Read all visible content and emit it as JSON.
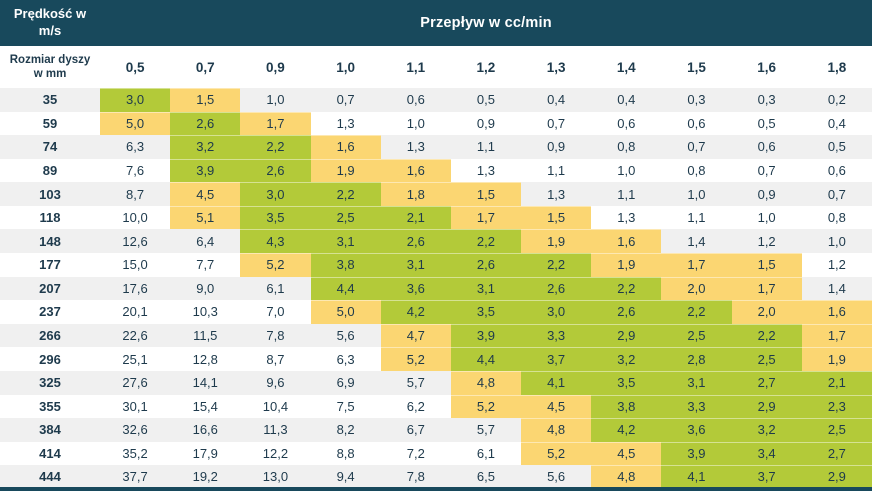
{
  "colors": {
    "header_bg": "#18495c",
    "header_text": "#ffffff",
    "body_text": "#1e3a4c",
    "green": "#b3ca39",
    "yellow": "#fbd672",
    "stripe": "#f0f0f0"
  },
  "chart_data": {
    "type": "table",
    "corner_label": "Prędkość w m/s",
    "title": "Przepływ w cc/min",
    "row_header_label": "Rozmiar dyszy w mm",
    "columns": [
      "0,5",
      "0,7",
      "0,9",
      "1,0",
      "1,1",
      "1,2",
      "1,3",
      "1,4",
      "1,5",
      "1,6",
      "1,8"
    ],
    "rows": [
      {
        "nozzle": "35",
        "values": [
          "3,0",
          "1,5",
          "1,0",
          "0,7",
          "0,6",
          "0,5",
          "0,4",
          "0,4",
          "0,3",
          "0,3",
          "0,2"
        ]
      },
      {
        "nozzle": "59",
        "values": [
          "5,0",
          "2,6",
          "1,7",
          "1,3",
          "1,0",
          "0,9",
          "0,7",
          "0,6",
          "0,6",
          "0,5",
          "0,4"
        ]
      },
      {
        "nozzle": "74",
        "values": [
          "6,3",
          "3,2",
          "2,2",
          "1,6",
          "1,3",
          "1,1",
          "0,9",
          "0,8",
          "0,7",
          "0,6",
          "0,5"
        ]
      },
      {
        "nozzle": "89",
        "values": [
          "7,6",
          "3,9",
          "2,6",
          "1,9",
          "1,6",
          "1,3",
          "1,1",
          "1,0",
          "0,8",
          "0,7",
          "0,6"
        ]
      },
      {
        "nozzle": "103",
        "values": [
          "8,7",
          "4,5",
          "3,0",
          "2,2",
          "1,8",
          "1,5",
          "1,3",
          "1,1",
          "1,0",
          "0,9",
          "0,7"
        ]
      },
      {
        "nozzle": "118",
        "values": [
          "10,0",
          "5,1",
          "3,5",
          "2,5",
          "2,1",
          "1,7",
          "1,5",
          "1,3",
          "1,1",
          "1,0",
          "0,8"
        ]
      },
      {
        "nozzle": "148",
        "values": [
          "12,6",
          "6,4",
          "4,3",
          "3,1",
          "2,6",
          "2,2",
          "1,9",
          "1,6",
          "1,4",
          "1,2",
          "1,0"
        ]
      },
      {
        "nozzle": "177",
        "values": [
          "15,0",
          "7,7",
          "5,2",
          "3,8",
          "3,1",
          "2,6",
          "2,2",
          "1,9",
          "1,7",
          "1,5",
          "1,2"
        ]
      },
      {
        "nozzle": "207",
        "values": [
          "17,6",
          "9,0",
          "6,1",
          "4,4",
          "3,6",
          "3,1",
          "2,6",
          "2,2",
          "2,0",
          "1,7",
          "1,4"
        ]
      },
      {
        "nozzle": "237",
        "values": [
          "20,1",
          "10,3",
          "7,0",
          "5,0",
          "4,2",
          "3,5",
          "3,0",
          "2,6",
          "2,2",
          "2,0",
          "1,6"
        ]
      },
      {
        "nozzle": "266",
        "values": [
          "22,6",
          "11,5",
          "7,8",
          "5,6",
          "4,7",
          "3,9",
          "3,3",
          "2,9",
          "2,5",
          "2,2",
          "1,7"
        ]
      },
      {
        "nozzle": "296",
        "values": [
          "25,1",
          "12,8",
          "8,7",
          "6,3",
          "5,2",
          "4,4",
          "3,7",
          "3,2",
          "2,8",
          "2,5",
          "1,9"
        ]
      },
      {
        "nozzle": "325",
        "values": [
          "27,6",
          "14,1",
          "9,6",
          "6,9",
          "5,7",
          "4,8",
          "4,1",
          "3,5",
          "3,1",
          "2,7",
          "2,1"
        ]
      },
      {
        "nozzle": "355",
        "values": [
          "30,1",
          "15,4",
          "10,4",
          "7,5",
          "6,2",
          "5,2",
          "4,5",
          "3,8",
          "3,3",
          "2,9",
          "2,3"
        ]
      },
      {
        "nozzle": "384",
        "values": [
          "32,6",
          "16,6",
          "11,3",
          "8,2",
          "6,7",
          "5,7",
          "4,8",
          "4,2",
          "3,6",
          "3,2",
          "2,5"
        ]
      },
      {
        "nozzle": "414",
        "values": [
          "35,2",
          "17,9",
          "12,2",
          "8,8",
          "7,2",
          "6,1",
          "5,2",
          "4,5",
          "3,9",
          "3,4",
          "2,7"
        ]
      },
      {
        "nozzle": "444",
        "values": [
          "37,7",
          "19,2",
          "13,0",
          "9,4",
          "7,8",
          "6,5",
          "5,6",
          "4,8",
          "4,1",
          "3,7",
          "2,9"
        ]
      }
    ],
    "highlight_rules": {
      "green_range": [
        2.05,
        4.45
      ],
      "yellow_ranges": [
        [
          1.45,
          2.05
        ],
        [
          4.45,
          5.25
        ]
      ]
    }
  }
}
